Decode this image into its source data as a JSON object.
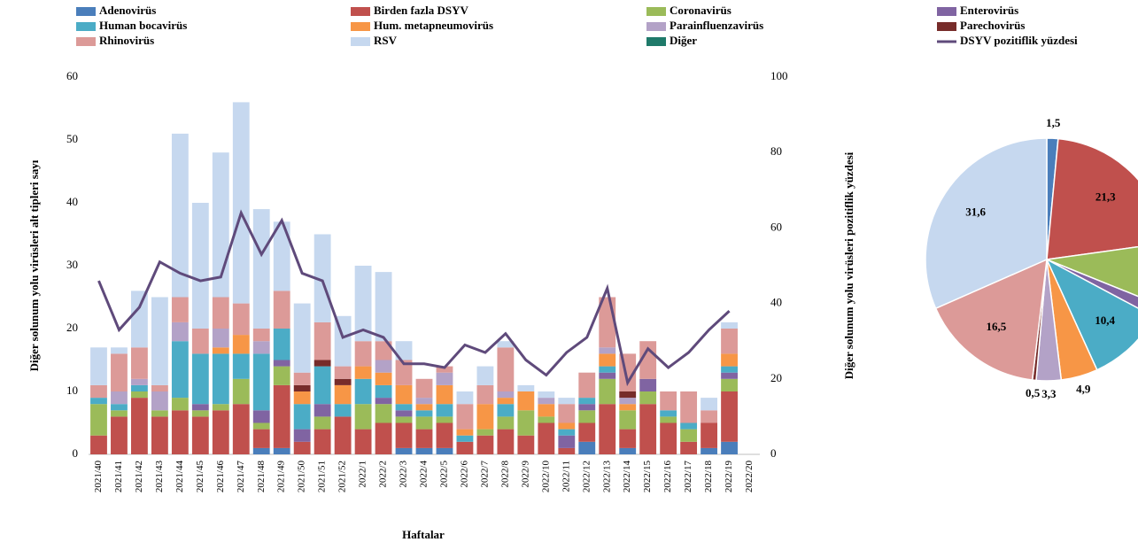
{
  "chart_data": [
    {
      "type": "bar",
      "stacked": true,
      "x_label": "Haftalar",
      "y_label": "Diğer solunum yolu virüsleri alt tipleri sayı",
      "y2_label": "Diğer solunum yolu virüsleri pozitiflik yüzdesi",
      "categories": [
        "2021/40",
        "2021/41",
        "2021/42",
        "2021/43",
        "2021/44",
        "2021/45",
        "2021/46",
        "2021/47",
        "2021/48",
        "2021/49",
        "2021/50",
        "2021/51",
        "2021/52",
        "2022/1",
        "2022/2",
        "2022/3",
        "2022/4",
        "2022/5",
        "2022/6",
        "2022/7",
        "2022/8",
        "2022/9",
        "2022/10",
        "2022/11",
        "2022/12",
        "2022/13",
        "2022/14",
        "2022/15",
        "2022/16",
        "2022/17",
        "2022/18",
        "2022/19",
        "2022/20"
      ],
      "series": [
        {
          "name": "Adenovirüs",
          "color": "#4a7ebb",
          "values": [
            0,
            0,
            0,
            0,
            0,
            0,
            0,
            0,
            1,
            1,
            0,
            0,
            0,
            0,
            0,
            1,
            1,
            1,
            0,
            0,
            0,
            0,
            0,
            0,
            2,
            0,
            1,
            0,
            0,
            0,
            1,
            2,
            0
          ]
        },
        {
          "name": "Birden fazla DSYV",
          "color": "#c0504d",
          "values": [
            3,
            6,
            9,
            6,
            7,
            6,
            7,
            8,
            3,
            10,
            2,
            4,
            6,
            4,
            5,
            4,
            3,
            4,
            2,
            3,
            4,
            3,
            5,
            1,
            3,
            8,
            3,
            8,
            5,
            2,
            4,
            8,
            0
          ]
        },
        {
          "name": "Coronavirüs",
          "color": "#9bbb59",
          "values": [
            5,
            1,
            1,
            1,
            2,
            1,
            1,
            4,
            1,
            3,
            0,
            2,
            0,
            4,
            3,
            1,
            2,
            1,
            0,
            1,
            2,
            4,
            1,
            0,
            2,
            4,
            3,
            2,
            1,
            2,
            0,
            2,
            0
          ]
        },
        {
          "name": "Enterovirüs",
          "color": "#8064a2",
          "values": [
            0,
            0,
            0,
            0,
            0,
            1,
            0,
            0,
            2,
            1,
            2,
            2,
            0,
            0,
            1,
            1,
            0,
            0,
            0,
            0,
            0,
            0,
            0,
            2,
            1,
            1,
            0,
            2,
            0,
            0,
            0,
            1,
            0
          ]
        },
        {
          "name": "Human bocavirüs",
          "color": "#4bacc6",
          "values": [
            1,
            1,
            1,
            0,
            9,
            8,
            8,
            4,
            9,
            5,
            4,
            6,
            2,
            4,
            2,
            1,
            1,
            2,
            1,
            0,
            2,
            0,
            0,
            1,
            1,
            1,
            0,
            0,
            1,
            1,
            0,
            1,
            0
          ]
        },
        {
          "name": "Hum. metapneumovirüs",
          "color": "#f79646",
          "values": [
            0,
            0,
            0,
            0,
            0,
            0,
            1,
            3,
            0,
            0,
            2,
            0,
            3,
            2,
            2,
            3,
            1,
            3,
            1,
            4,
            1,
            3,
            2,
            1,
            0,
            2,
            1,
            0,
            0,
            0,
            0,
            2,
            0
          ]
        },
        {
          "name": "Parainfluenzavirüs",
          "color": "#b3a2c7",
          "values": [
            0,
            2,
            1,
            3,
            3,
            0,
            3,
            0,
            2,
            0,
            0,
            0,
            0,
            0,
            2,
            0,
            1,
            2,
            0,
            0,
            1,
            0,
            1,
            0,
            0,
            1,
            1,
            0,
            0,
            0,
            0,
            0,
            0
          ]
        },
        {
          "name": "Parechovirüs",
          "color": "#772c2a",
          "values": [
            0,
            0,
            0,
            0,
            0,
            0,
            0,
            0,
            0,
            0,
            1,
            1,
            1,
            0,
            0,
            0,
            0,
            0,
            0,
            0,
            0,
            0,
            0,
            0,
            0,
            0,
            1,
            0,
            0,
            0,
            0,
            0,
            0
          ]
        },
        {
          "name": "Rhinovirüs",
          "color": "#dc9a98",
          "values": [
            2,
            6,
            5,
            1,
            4,
            4,
            5,
            5,
            2,
            6,
            2,
            6,
            2,
            4,
            3,
            4,
            3,
            1,
            4,
            3,
            7,
            0,
            0,
            3,
            4,
            8,
            6,
            6,
            3,
            5,
            2,
            4,
            0
          ]
        },
        {
          "name": "RSV",
          "color": "#c6d8ef",
          "values": [
            6,
            1,
            9,
            14,
            26,
            20,
            23,
            32,
            19,
            11,
            11,
            14,
            8,
            12,
            11,
            3,
            0,
            0,
            2,
            3,
            1,
            1,
            1,
            1,
            0,
            0,
            0,
            0,
            0,
            0,
            2,
            1,
            0
          ]
        },
        {
          "name": "Diğer",
          "color": "#1f7a6a",
          "values": [
            0,
            0,
            0,
            0,
            0,
            0,
            0,
            0,
            0,
            0,
            0,
            0,
            0,
            0,
            0,
            0,
            0,
            0,
            0,
            0,
            0,
            0,
            0,
            0,
            0,
            0,
            0,
            0,
            0,
            0,
            0,
            0,
            0
          ]
        },
        {
          "name": "DSYV pozitiflik yüzdesi",
          "color": "#5f4a7b",
          "type": "line",
          "axis": "y2",
          "values": [
            46,
            33,
            39,
            51,
            48,
            46,
            47,
            64,
            53,
            62,
            48,
            46,
            31,
            33,
            31,
            24,
            24,
            23,
            29,
            27,
            32,
            25,
            21,
            27,
            31,
            44,
            19,
            28,
            23,
            27,
            33,
            38,
            null
          ]
        }
      ],
      "ylim": [
        0,
        60
      ],
      "yticks": [
        0,
        10,
        20,
        30,
        40,
        50,
        60
      ],
      "y2lim": [
        0,
        100
      ],
      "y2ticks": [
        0,
        20,
        40,
        60,
        80,
        100
      ],
      "grid": false,
      "legend": "top"
    },
    {
      "type": "pie",
      "values": [
        1.5,
        21.3,
        8.3,
        1.7,
        10.4,
        4.9,
        3.3,
        0.5,
        16.5,
        31.6,
        0
      ],
      "value_labels": [
        "1,5",
        "21,3",
        null,
        null,
        "10,4",
        "4,9",
        "3,3",
        "0,5",
        "16,5",
        "31,6",
        null
      ],
      "colors": [
        "#4a7ebb",
        "#c0504d",
        "#9bbb59",
        "#8064a2",
        "#4bacc6",
        "#f79646",
        "#b3a2c7",
        "#772c2a",
        "#dc9a98",
        "#c6d8ef",
        "#1f7a6a"
      ]
    }
  ]
}
